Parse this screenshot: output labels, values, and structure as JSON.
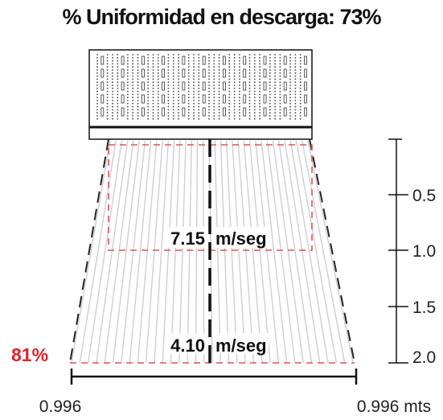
{
  "title": "% Uniformidad en descarga: 73%",
  "velocity_top": {
    "value": "7.15",
    "unit": "m/seg"
  },
  "velocity_bottom": {
    "value": "4.10",
    "unit": "m/seg"
  },
  "uniformity_bottom": "81%",
  "width_left": "0.996",
  "width_right": "0.996 mts",
  "depth_scale": [
    "0.5",
    "1.0",
    "1.5",
    "2.0"
  ],
  "colors": {
    "accent": "#e0232d",
    "ink": "#111111",
    "stream": "#cfcfcf",
    "dashed_red": "#e05555"
  },
  "icons": [
    "diffuser-panel-icon"
  ]
}
